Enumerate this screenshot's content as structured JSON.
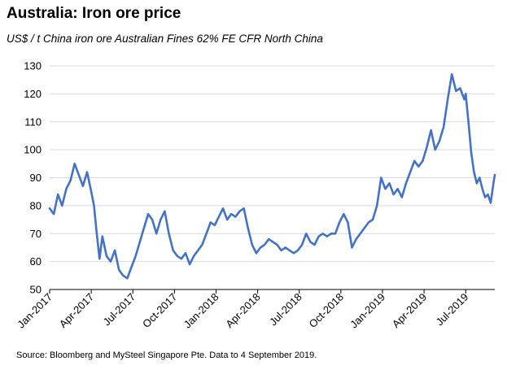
{
  "header": {
    "title": "Australia: Iron ore price",
    "subtitle": "US$ / t  China iron ore Australian Fines 62% FE CFR North China"
  },
  "footer": {
    "source": "Source: Bloomberg and MySteel Singapore Pte.  Data to 4 September 2019."
  },
  "colors": {
    "line": "#4472C4",
    "grid": "#d9d9d9",
    "axis": "#000000"
  },
  "chart_data": {
    "type": "line",
    "title": "Australia: Iron ore price",
    "ylabel": "US$ / t",
    "xlabel": "",
    "ylim": [
      50,
      130
    ],
    "yticks": [
      50,
      60,
      70,
      80,
      90,
      100,
      110,
      120,
      130
    ],
    "xlim": [
      0,
      32.1
    ],
    "x_tick_positions": [
      0,
      3,
      6,
      9,
      12,
      15,
      18,
      21,
      24,
      27,
      30
    ],
    "x_tick_labels": [
      "Jan-2017",
      "Apr-2017",
      "Jul-2017",
      "Oct-2017",
      "Jan-2018",
      "Apr-2018",
      "Jul-2018",
      "Oct-2018",
      "Jan-2019",
      "Apr-2019",
      "Jul-2019"
    ],
    "grid": true,
    "series": [
      {
        "name": "China iron ore Australian Fines 62% FE CFR North China",
        "x": [
          0,
          0.3,
          0.6,
          0.9,
          1.2,
          1.5,
          1.8,
          2.1,
          2.4,
          2.7,
          3.0,
          3.2,
          3.4,
          3.6,
          3.8,
          4.1,
          4.4,
          4.7,
          5.0,
          5.3,
          5.6,
          5.9,
          6.2,
          6.5,
          6.8,
          7.1,
          7.4,
          7.7,
          8.0,
          8.3,
          8.6,
          8.9,
          9.2,
          9.5,
          9.8,
          10.1,
          10.4,
          10.7,
          11.0,
          11.3,
          11.6,
          11.9,
          12.2,
          12.5,
          12.8,
          13.1,
          13.4,
          13.7,
          14.0,
          14.3,
          14.6,
          14.9,
          15.2,
          15.5,
          15.8,
          16.1,
          16.4,
          16.7,
          17.0,
          17.3,
          17.6,
          17.9,
          18.2,
          18.5,
          18.8,
          19.1,
          19.4,
          19.7,
          20.0,
          20.3,
          20.6,
          20.9,
          21.2,
          21.5,
          21.8,
          22.1,
          22.4,
          22.7,
          23.0,
          23.3,
          23.6,
          23.9,
          24.2,
          24.5,
          24.8,
          25.1,
          25.4,
          25.7,
          26.0,
          26.3,
          26.6,
          26.9,
          27.2,
          27.5,
          27.8,
          28.1,
          28.4,
          28.7,
          29.0,
          29.3,
          29.6,
          29.9,
          30.0,
          30.2,
          30.4,
          30.6,
          30.8,
          31.0,
          31.2,
          31.4,
          31.6,
          31.8,
          32.0,
          32.1
        ],
        "values": [
          79,
          77,
          84,
          80,
          86,
          89,
          95,
          91,
          87,
          92,
          85,
          80,
          70,
          61,
          69,
          62,
          60,
          64,
          57,
          55,
          54,
          58,
          62,
          67,
          72,
          77,
          75,
          70,
          75,
          78,
          70,
          64,
          62,
          61,
          63,
          59,
          62,
          64,
          66,
          70,
          74,
          73,
          76,
          79,
          75,
          77,
          76,
          78,
          79,
          72,
          66,
          63,
          65,
          66,
          68,
          67,
          66,
          64,
          65,
          64,
          63,
          64,
          66,
          70,
          67,
          66,
          69,
          70,
          69,
          70,
          70,
          74,
          77,
          74,
          65,
          68,
          70,
          72,
          74,
          75,
          80,
          90,
          86,
          88,
          84,
          86,
          83,
          88,
          92,
          96,
          94,
          96,
          101,
          107,
          100,
          103,
          108,
          118,
          127,
          121,
          122,
          118,
          120,
          110,
          99,
          92,
          88,
          90,
          86,
          83,
          84,
          81,
          88,
          91
        ]
      }
    ]
  }
}
